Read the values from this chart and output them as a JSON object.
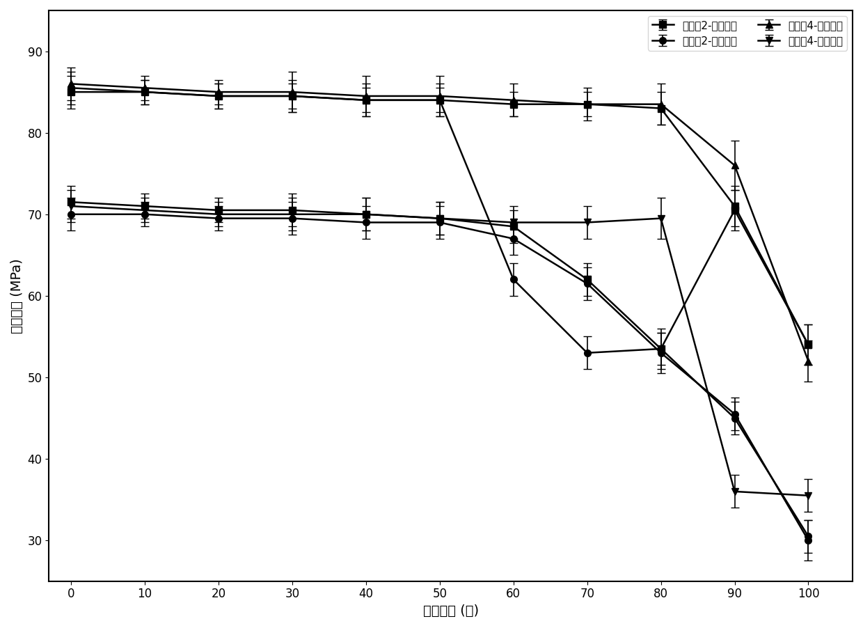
{
  "x": [
    0,
    10,
    20,
    30,
    40,
    50,
    60,
    70,
    80,
    90,
    100
  ],
  "series": [
    {
      "label": "实施例2-完整试件",
      "y": [
        85.0,
        85.0,
        84.5,
        84.5,
        84.0,
        84.0,
        83.5,
        83.5,
        83.0,
        71.0,
        54.0
      ],
      "yerr": [
        2.0,
        1.5,
        1.5,
        1.5,
        1.5,
        1.5,
        1.5,
        1.5,
        2.0,
        2.5,
        2.5
      ],
      "marker": "s"
    },
    {
      "label": "实施例2-修复试件",
      "y": [
        85.5,
        85.0,
        84.5,
        84.5,
        84.0,
        84.0,
        62.0,
        53.0,
        53.5,
        45.0,
        30.5
      ],
      "yerr": [
        2.0,
        1.5,
        1.5,
        2.0,
        2.0,
        2.0,
        2.0,
        2.0,
        2.0,
        2.0,
        2.0
      ],
      "marker": "o"
    },
    {
      "label": "实施例4-完整试件",
      "y": [
        86.0,
        85.5,
        85.0,
        85.0,
        84.5,
        84.5,
        84.0,
        83.5,
        83.5,
        76.0,
        52.0
      ],
      "yerr": [
        2.0,
        1.5,
        1.5,
        2.5,
        2.5,
        2.5,
        2.0,
        2.0,
        2.5,
        3.0,
        2.5
      ],
      "marker": "^"
    },
    {
      "label": "实施例4-修复试件",
      "y": [
        71.0,
        70.5,
        70.0,
        70.0,
        70.0,
        69.5,
        69.0,
        69.0,
        69.5,
        36.0,
        35.5
      ],
      "yerr": [
        2.0,
        1.5,
        1.5,
        2.0,
        2.0,
        2.0,
        2.0,
        2.0,
        2.5,
        2.0,
        2.0
      ],
      "marker": "v"
    },
    {
      "label": null,
      "y": [
        71.5,
        71.0,
        70.5,
        70.5,
        70.0,
        69.5,
        68.5,
        62.0,
        53.5,
        70.5,
        54.0
      ],
      "yerr": [
        2.0,
        1.5,
        1.5,
        2.0,
        2.0,
        2.0,
        2.0,
        2.0,
        2.5,
        2.5,
        2.5
      ],
      "marker": "s"
    },
    {
      "label": null,
      "y": [
        70.0,
        70.0,
        69.5,
        69.5,
        69.0,
        69.0,
        67.0,
        61.5,
        53.0,
        45.5,
        30.0
      ],
      "yerr": [
        2.0,
        1.5,
        1.5,
        2.0,
        2.0,
        2.0,
        2.0,
        2.0,
        2.5,
        2.0,
        2.5
      ],
      "marker": "o"
    }
  ],
  "xlabel": "循环次数 (次)",
  "ylabel": "抗压强度 (MPa)",
  "ylim": [
    25,
    95
  ],
  "yticks": [
    30,
    40,
    50,
    60,
    70,
    80,
    90
  ],
  "xticks": [
    0,
    10,
    20,
    30,
    40,
    50,
    60,
    70,
    80,
    90,
    100
  ],
  "color": "#000000",
  "linewidth": 1.8,
  "markersize": 7,
  "capsize": 4,
  "elinewidth": 1.2,
  "legend_fontsize": 11,
  "label_fontsize": 14,
  "tick_fontsize": 12,
  "figsize": [
    12.4,
    9.02
  ],
  "dpi": 100
}
